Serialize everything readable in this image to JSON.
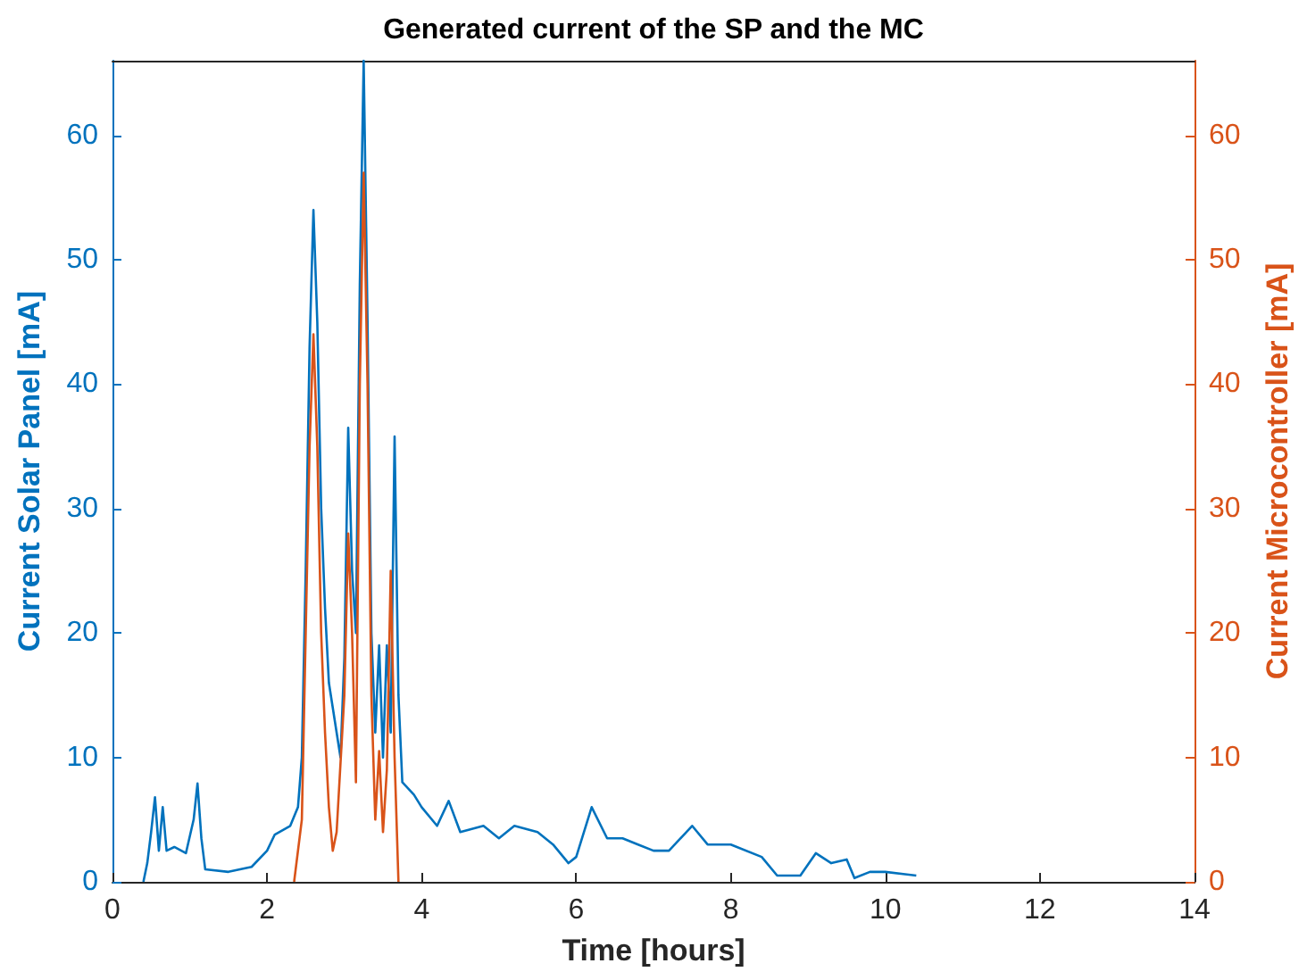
{
  "chart_data": {
    "type": "line",
    "title": "Generated current of the SP and the MC",
    "xlabel": "Time [hours]",
    "ylabel": "Current Solar Panel [mA]",
    "y2label": "Current Microcontroller [mA]",
    "xlim": [
      0,
      14
    ],
    "xticks": [
      0,
      2,
      4,
      6,
      8,
      10,
      12,
      14
    ],
    "ylim": [
      0,
      66
    ],
    "yticks": [
      0,
      10,
      20,
      30,
      40,
      50,
      60
    ],
    "y2lim": [
      0,
      66
    ],
    "y2ticks": [
      0,
      10,
      20,
      30,
      40,
      50,
      60
    ],
    "grid": false,
    "marker": "none",
    "line_style": "solid",
    "series": [
      {
        "color": "#0072bd",
        "x": [
          0.4,
          0.45,
          0.5,
          0.55,
          0.6,
          0.65,
          0.7,
          0.8,
          0.95,
          1.05,
          1.1,
          1.15,
          1.2,
          1.5,
          1.8,
          2.0,
          2.1,
          2.3,
          2.4,
          2.45,
          2.5,
          2.55,
          2.6,
          2.65,
          2.7,
          2.75,
          2.8,
          2.9,
          2.95,
          3.0,
          3.05,
          3.1,
          3.15,
          3.2,
          3.25,
          3.3,
          3.35,
          3.4,
          3.45,
          3.5,
          3.55,
          3.6,
          3.65,
          3.7,
          3.75,
          3.9,
          4.0,
          4.2,
          4.35,
          4.5,
          4.8,
          5.0,
          5.2,
          5.5,
          5.7,
          5.9,
          6.0,
          6.2,
          6.4,
          6.6,
          6.8,
          7.0,
          7.2,
          7.5,
          7.7,
          8.0,
          8.4,
          8.6,
          8.9,
          9.1,
          9.3,
          9.5,
          9.6,
          9.8,
          10.0,
          10.4
        ],
        "values": [
          0,
          1.5,
          4,
          6.8,
          2.5,
          6,
          2.5,
          2.8,
          2.3,
          5,
          7.9,
          3.5,
          1,
          0.8,
          1.2,
          2.5,
          3.8,
          4.5,
          6,
          10,
          25,
          43,
          54,
          45,
          30,
          22,
          16,
          12,
          10,
          18,
          36.5,
          25,
          20,
          48,
          66,
          45,
          20,
          12,
          19,
          10,
          19,
          12,
          35.8,
          15,
          8,
          7,
          6,
          4.5,
          6.5,
          4,
          4.5,
          3.5,
          4.5,
          4,
          3,
          1.5,
          2,
          6,
          3.5,
          3.5,
          3,
          2.5,
          2.5,
          4.5,
          3,
          3,
          2,
          0.5,
          0.5,
          2.3,
          1.5,
          1.8,
          0.3,
          0.8,
          0.8,
          0.5
        ]
      },
      {
        "color": "#d95319",
        "axis": "y2",
        "x": [
          2.35,
          2.45,
          2.5,
          2.55,
          2.6,
          2.65,
          2.7,
          2.75,
          2.8,
          2.85,
          2.9,
          3.0,
          3.05,
          3.1,
          3.15,
          3.2,
          3.25,
          3.3,
          3.35,
          3.4,
          3.45,
          3.5,
          3.55,
          3.6,
          3.65,
          3.7
        ],
        "values": [
          0,
          5,
          20,
          35,
          44,
          35,
          20,
          12,
          6,
          2.5,
          4,
          15,
          28,
          20,
          8,
          40,
          57,
          40,
          15,
          5,
          10.5,
          4,
          9,
          25,
          10,
          0
        ]
      }
    ]
  }
}
